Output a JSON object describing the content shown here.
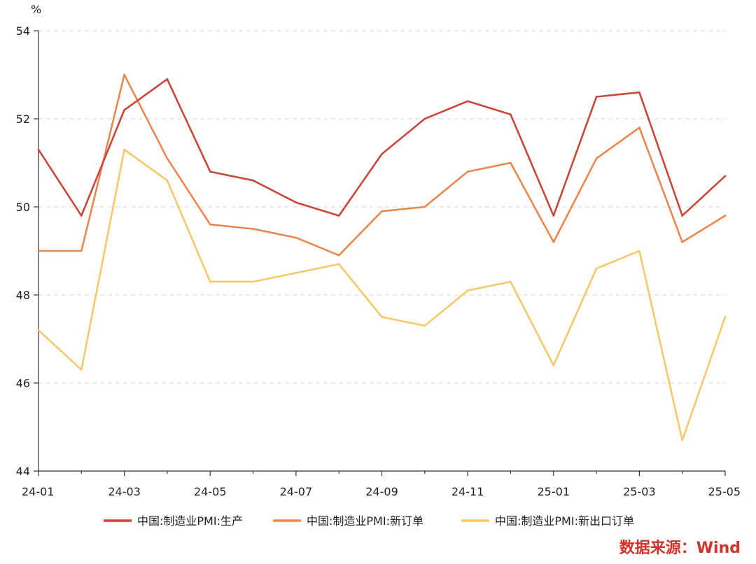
{
  "chart_data": {
    "type": "line",
    "y_unit": "%",
    "ylim": [
      44,
      54
    ],
    "y_ticks": [
      44,
      46,
      48,
      50,
      52,
      54
    ],
    "grid": true,
    "legend_position": "bottom",
    "x": [
      "24-01",
      "24-02",
      "24-03",
      "24-04",
      "24-05",
      "24-06",
      "24-07",
      "24-08",
      "24-09",
      "24-10",
      "24-11",
      "24-12",
      "25-01",
      "25-02",
      "25-03",
      "25-04",
      "25-05"
    ],
    "x_tick_labels": [
      "24-01",
      "24-03",
      "24-05",
      "24-07",
      "24-09",
      "24-11",
      "25-01",
      "25-03",
      "25-05"
    ],
    "series": [
      {
        "name": "中国:制造业PMI:生产",
        "color": "#c9473a",
        "values": [
          51.3,
          49.8,
          52.2,
          52.9,
          50.8,
          50.6,
          50.1,
          49.8,
          51.2,
          52.0,
          52.4,
          52.1,
          49.8,
          52.5,
          52.6,
          49.8,
          50.7
        ]
      },
      {
        "name": "中国:制造业PMI:新订单",
        "color": "#e8874f",
        "values": [
          49.0,
          49.0,
          53.0,
          51.1,
          49.6,
          49.5,
          49.3,
          48.9,
          49.9,
          50.0,
          50.8,
          51.0,
          49.2,
          51.1,
          51.8,
          49.2,
          49.8
        ]
      },
      {
        "name": "中国:制造业PMI:新出口订单",
        "color": "#f6c86c",
        "values": [
          47.2,
          46.3,
          51.3,
          50.6,
          48.3,
          48.3,
          48.5,
          48.7,
          47.5,
          47.3,
          48.1,
          48.3,
          46.4,
          48.6,
          49.0,
          44.7,
          47.5
        ]
      }
    ]
  },
  "source": {
    "text": "数据来源：Wind",
    "color": "#d0332b"
  }
}
